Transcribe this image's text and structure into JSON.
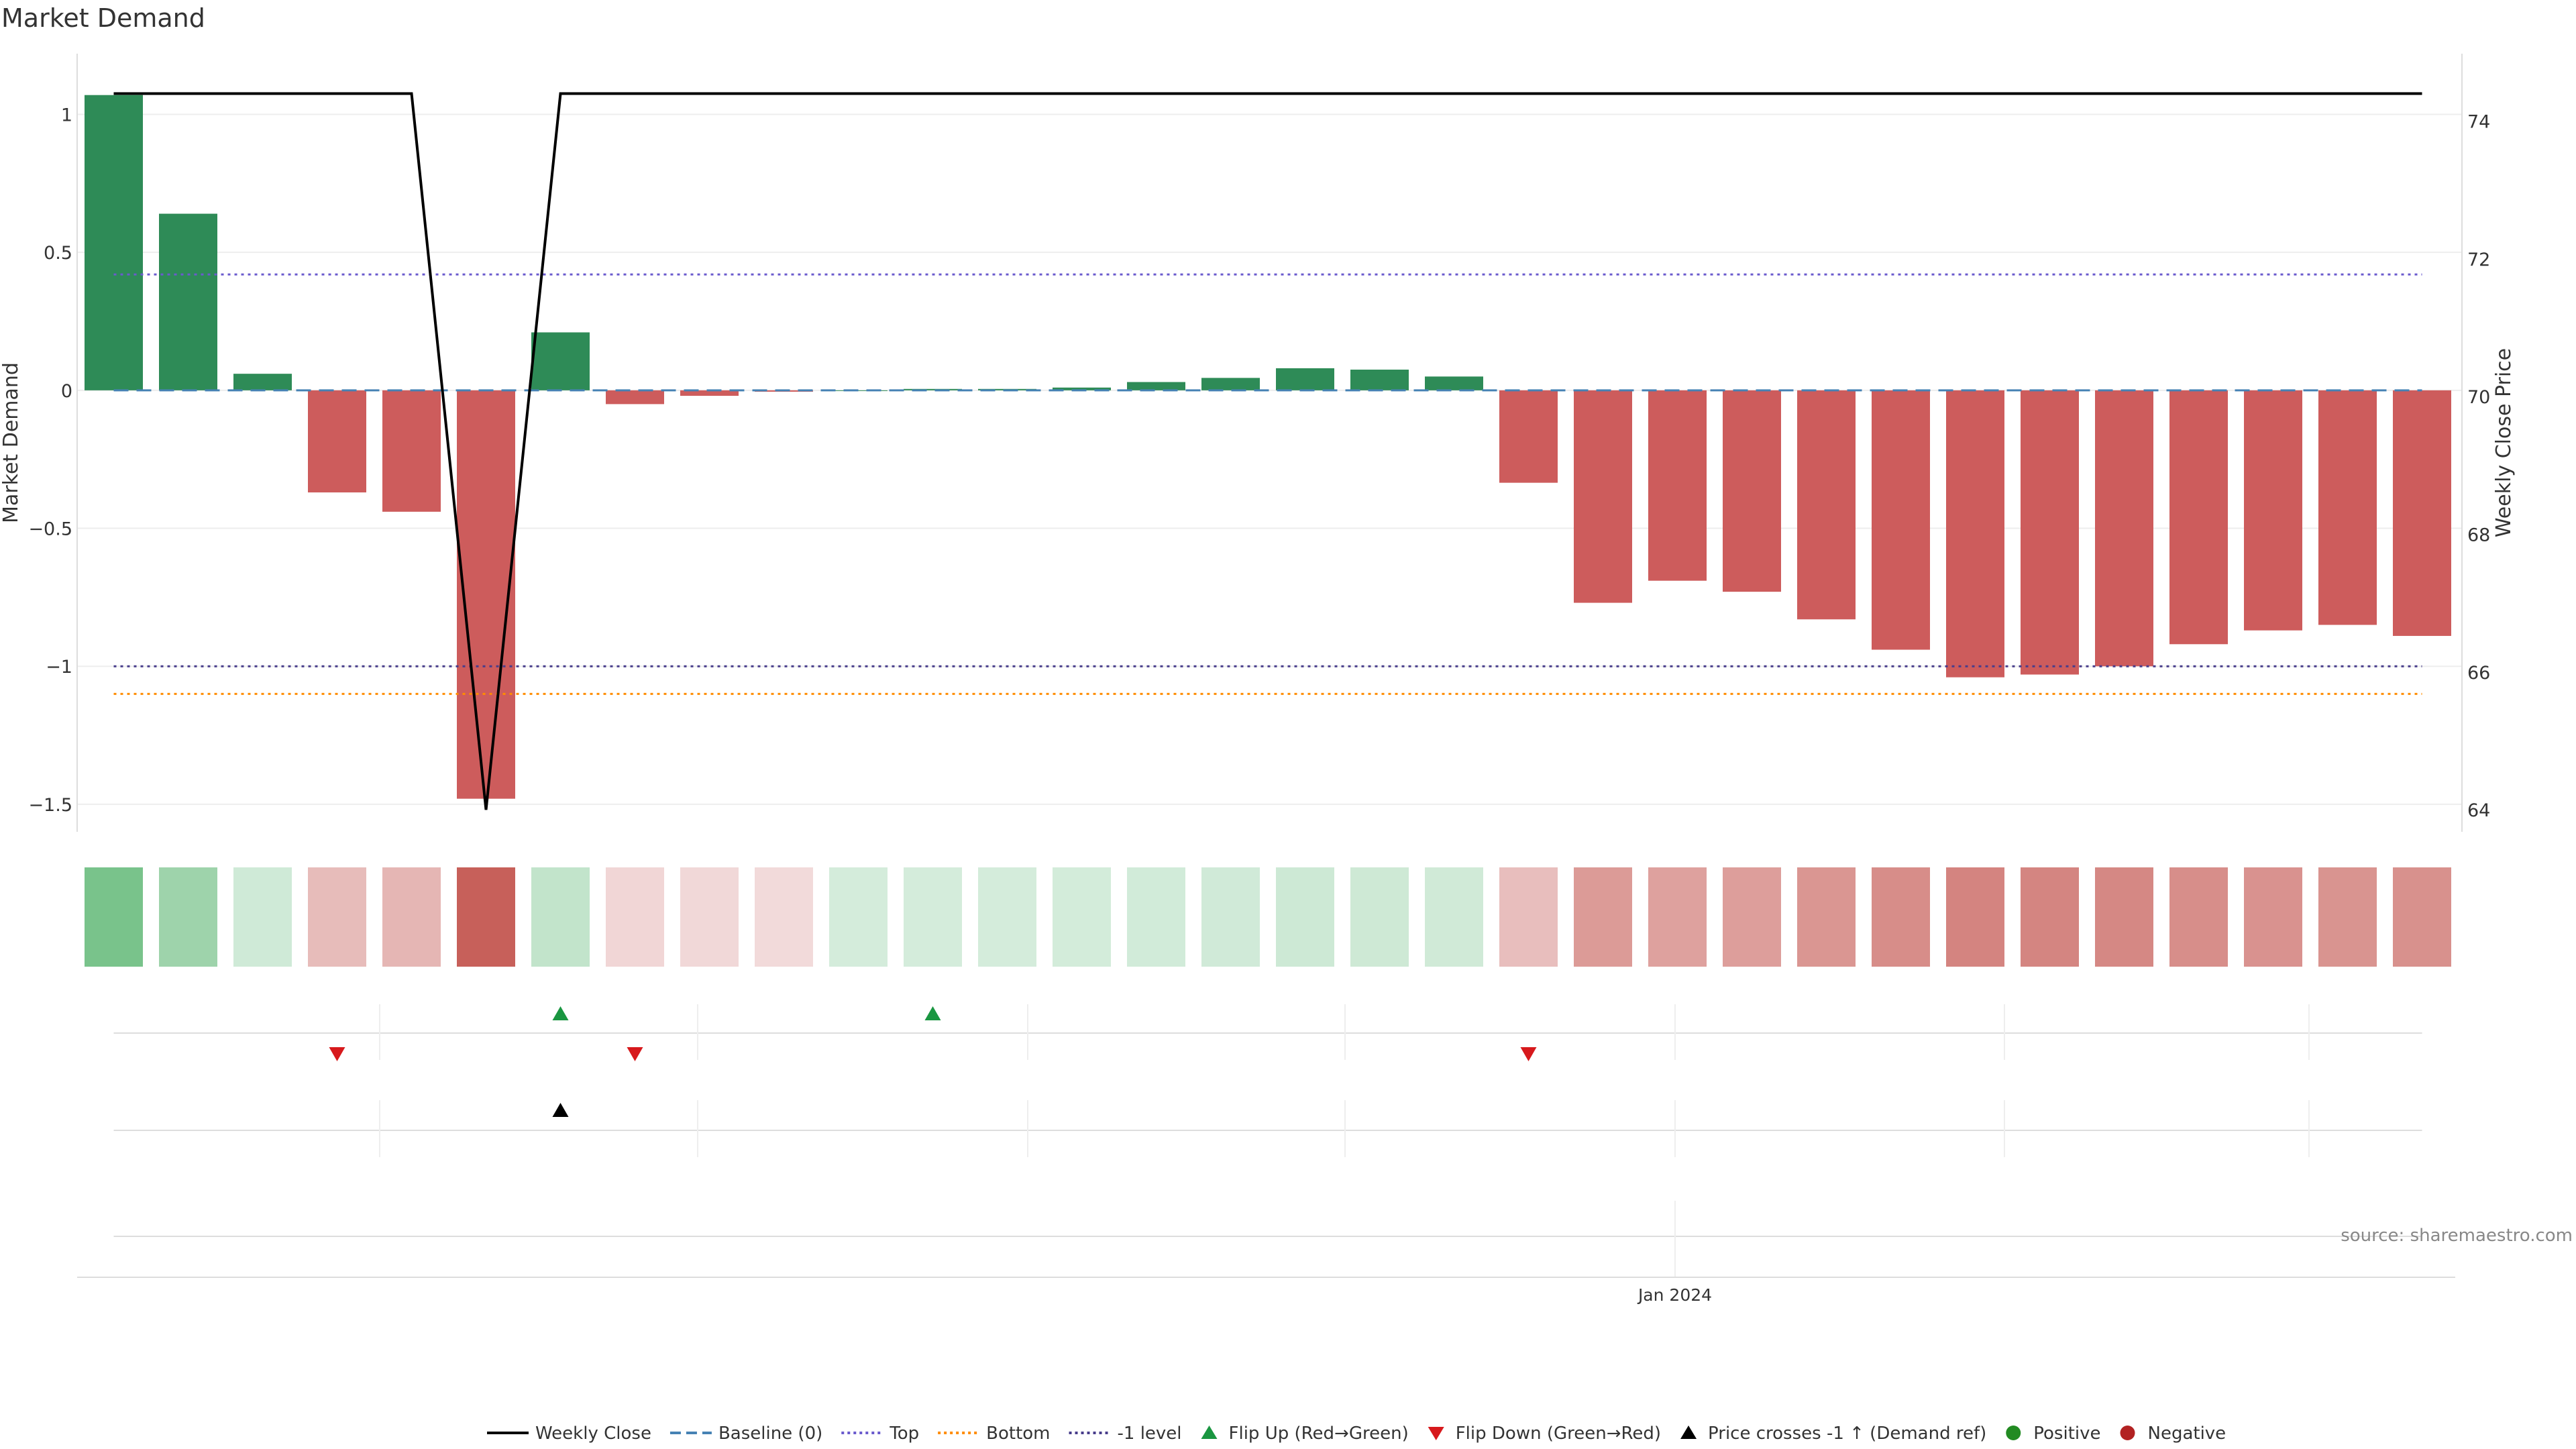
{
  "chart_data": {
    "type": "bar",
    "title": "Market Demand",
    "ylabel": "Market Demand",
    "y2label": "Weekly Close Price",
    "xlabel": "",
    "ylim": [
      -1.6,
      1.22
    ],
    "y2lim": [
      63.68,
      74.98
    ],
    "yticks": [
      1,
      0.5,
      0,
      -0.5,
      -1,
      -1.5
    ],
    "ytick_labels": [
      "1",
      "0.5",
      "0",
      "−0.5",
      "−1",
      "−1.5"
    ],
    "y2ticks": [
      74,
      72,
      70,
      68,
      66,
      64
    ],
    "y2tick_labels": [
      "74",
      "72",
      "70",
      "68",
      "66",
      "64"
    ],
    "x_tick_labels": [
      "Jan 2024"
    ],
    "grid": true,
    "legend_position": "bottom-center",
    "source": "source: sharemaestro.com",
    "top_level": 0.42,
    "bottom_level": -1.1,
    "minus_one_level": -1,
    "baseline_level": 0,
    "demand": [
      1.07,
      0.64,
      0.06,
      -0.37,
      -0.44,
      -1.48,
      0.21,
      -0.05,
      -0.02,
      -0.005,
      0,
      0.005,
      0.005,
      0.01,
      0.03,
      0.045,
      0.08,
      0.075,
      0.05,
      -0.335,
      -0.77,
      -0.69,
      -0.73,
      -0.83,
      -0.94,
      -1.04,
      -1.03,
      -1.0,
      -0.92,
      -0.87,
      -0.85,
      -0.89
    ],
    "weekly_close": [
      74.4,
      74.4,
      74.4,
      74.4,
      74.4,
      64.0,
      74.4,
      74.4,
      74.4,
      74.4,
      74.4,
      74.4,
      74.4,
      74.4,
      74.4,
      74.4,
      74.4,
      74.4,
      74.4,
      74.4,
      74.4,
      74.4,
      74.4,
      74.4,
      74.4,
      74.4,
      74.4,
      74.4,
      74.4,
      74.4,
      74.4,
      74.4
    ],
    "flip_up_weeks": [
      6,
      11
    ],
    "flip_down_weeks": [
      3,
      7,
      19
    ],
    "price_cross_weeks": [
      6
    ],
    "colors": {
      "positive_bar": "#2e8b57",
      "negative_bar": "#cd5c5c",
      "weekly_close": "#000000",
      "baseline": "#4682b4",
      "top": "#6a5acd",
      "bottom": "#ff8c00",
      "minus_one": "#483d8b",
      "flip_up": "#1a9641",
      "flip_down": "#d7191c",
      "price_cross": "#000000",
      "positive_dot": "#228b22",
      "negative_dot": "#b22222"
    },
    "legend": [
      {
        "label": "Weekly Close",
        "kind": "line-solid",
        "color": "#000000"
      },
      {
        "label": "Baseline (0)",
        "kind": "line-dash",
        "color": "#4682b4"
      },
      {
        "label": "Top",
        "kind": "line-dot",
        "color": "#6a5acd"
      },
      {
        "label": "Bottom",
        "kind": "line-dot",
        "color": "#ff8c00"
      },
      {
        "label": "-1 level",
        "kind": "line-dot",
        "color": "#483d8b"
      },
      {
        "label": "Flip Up (Red→Green)",
        "kind": "tri-up",
        "color": "#1a9641"
      },
      {
        "label": "Flip Down (Green→Red)",
        "kind": "tri-down",
        "color": "#d7191c"
      },
      {
        "label": "Price crosses -1 ↑ (Demand ref)",
        "kind": "tri-up",
        "color": "#000000"
      },
      {
        "label": "Positive",
        "kind": "dot",
        "color": "#228b22"
      },
      {
        "label": "Negative",
        "kind": "dot",
        "color": "#b22222"
      }
    ]
  }
}
